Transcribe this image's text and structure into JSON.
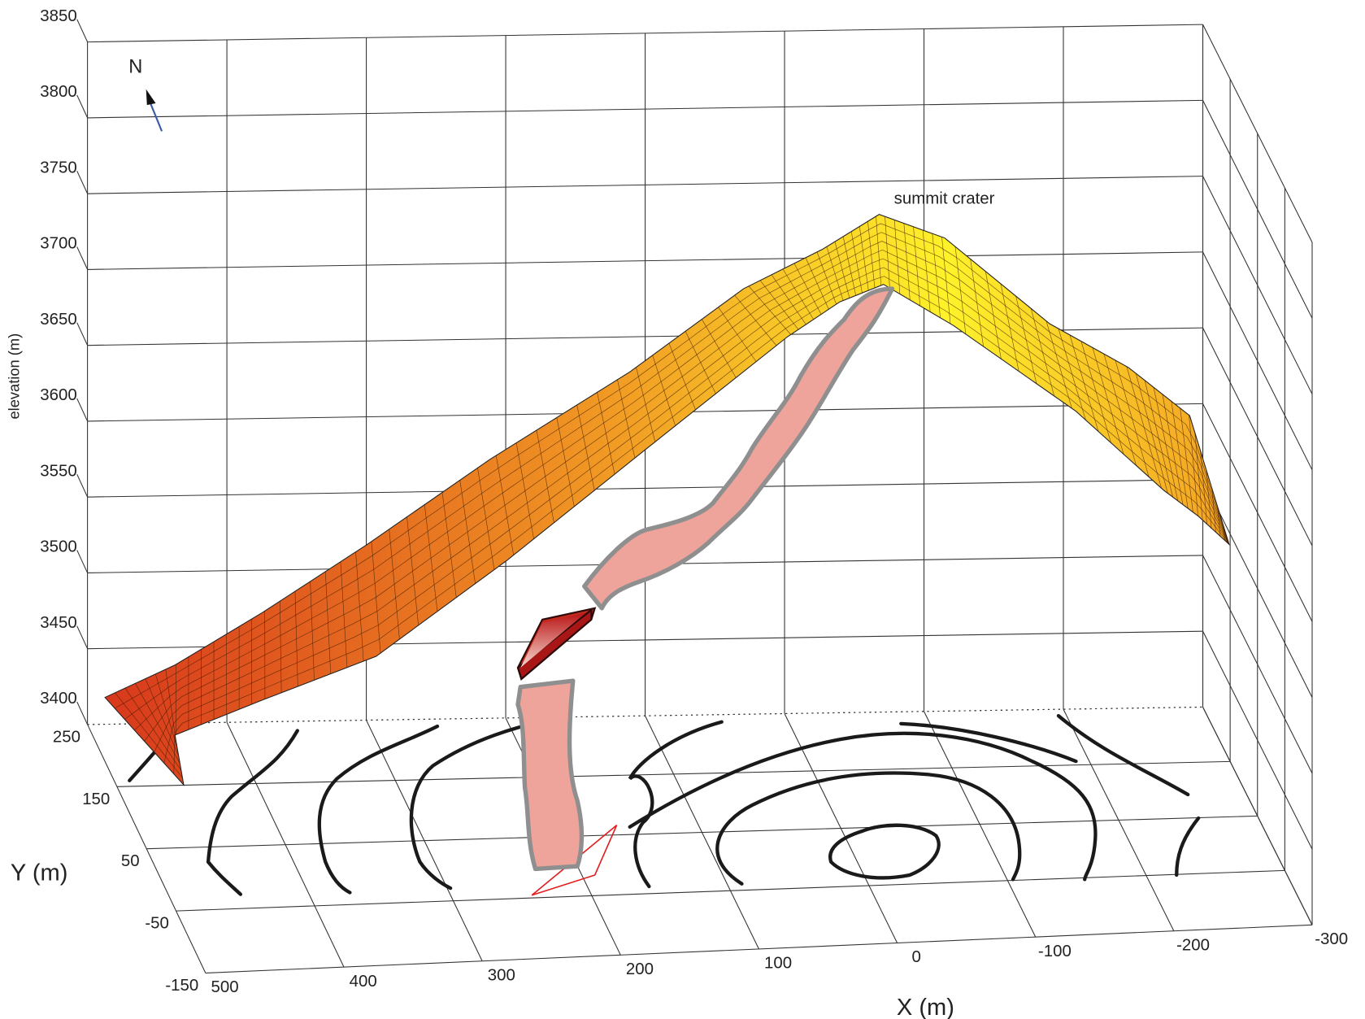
{
  "chart_data": {
    "type": "surface3d",
    "xlabel": "X (m)",
    "ylabel": "Y (m)",
    "zlabel": "elevation (m)",
    "xlim": [
      500,
      -300
    ],
    "ylim": [
      250,
      -150
    ],
    "zlim": [
      3400,
      3850
    ],
    "xticks": [
      500,
      400,
      300,
      200,
      100,
      0,
      -100,
      -200,
      -300
    ],
    "yticks": [
      250,
      150,
      50,
      -50,
      -150
    ],
    "zticks": [
      3400,
      3450,
      3500,
      3550,
      3600,
      3650,
      3700,
      3750,
      3800,
      3850
    ],
    "annotations": [
      "summit crater",
      "N"
    ],
    "grid": true
  }
}
